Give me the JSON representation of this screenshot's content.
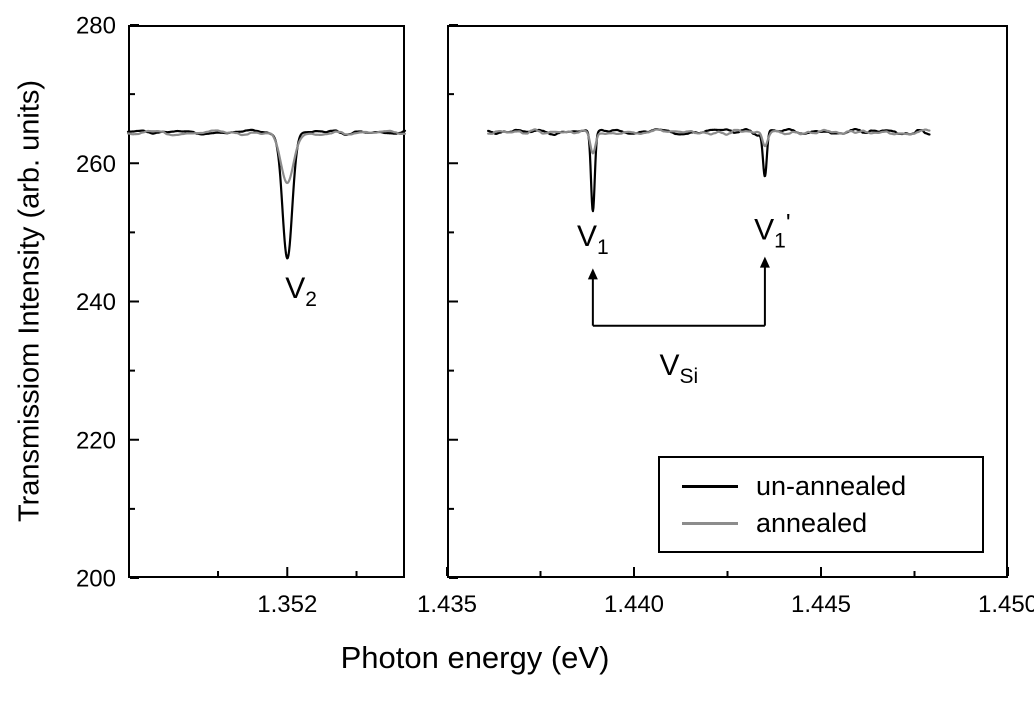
{
  "chart_data": {
    "type": "line",
    "xlabel": "Photon energy (eV)",
    "ylabel": "Transmissiom Intensity (arb. units)",
    "ylim": [
      200,
      280
    ],
    "yticks": [
      200,
      220,
      240,
      260,
      280
    ],
    "ytick_labels": [
      "200",
      "220",
      "240",
      "260",
      "280"
    ],
    "yticks_minor": [
      210,
      230,
      250,
      270
    ],
    "baseline": 264.5,
    "noise_amplitude": 0.55,
    "legend": {
      "position": "lower right",
      "entries": [
        {
          "label": "un-annealed",
          "color": "#000000"
        },
        {
          "label": "annealed",
          "color": "#8c8c8c"
        }
      ]
    },
    "panels": [
      {
        "name": "V2-panel",
        "xlim": [
          1.3497,
          1.3537
        ],
        "xticks": [
          1.352
        ],
        "xtick_labels": [
          "1.352"
        ],
        "xticks_minor": [
          1.351,
          1.353
        ],
        "data_range": [
          1.3497,
          1.3537
        ],
        "series": [
          {
            "name": "un-annealed",
            "color": "#000000",
            "seed": 11,
            "dips": [
              {
                "center": 1.352,
                "min": 246.0,
                "sigma": 7e-05
              }
            ]
          },
          {
            "name": "annealed",
            "color": "#8c8c8c",
            "seed": 22,
            "dips": [
              {
                "center": 1.352,
                "min": 257.5,
                "sigma": 9e-05
              }
            ]
          }
        ],
        "annotations": [
          {
            "kind": "label",
            "x": 1.3522,
            "y": 240.5,
            "main": "V",
            "sub": "2",
            "post": ""
          }
        ]
      },
      {
        "name": "V1-panel",
        "xlim": [
          1.435,
          1.45
        ],
        "xticks": [
          1.435,
          1.44,
          1.445,
          1.45
        ],
        "xtick_labels": [
          "1.435",
          "1.440",
          "1.445",
          "1.450"
        ],
        "xticks_minor": [
          1.4375,
          1.4425,
          1.4475
        ],
        "data_range": [
          1.4361,
          1.4479
        ],
        "series": [
          {
            "name": "un-annealed",
            "color": "#000000",
            "seed": 33,
            "dips": [
              {
                "center": 1.4389,
                "min": 253.0,
                "sigma": 5e-05
              },
              {
                "center": 1.4435,
                "min": 258.0,
                "sigma": 5e-05
              }
            ]
          },
          {
            "name": "annealed",
            "color": "#8c8c8c",
            "seed": 44,
            "dips": [
              {
                "center": 1.4389,
                "min": 261.3,
                "sigma": 7e-05
              },
              {
                "center": 1.4435,
                "min": 262.3,
                "sigma": 7e-05
              }
            ]
          }
        ],
        "annotations": [
          {
            "kind": "arrow",
            "x": 1.4389,
            "y1": 236.5,
            "y2": 244.8
          },
          {
            "kind": "arrow",
            "x": 1.4435,
            "y1": 236.5,
            "y2": 246.5
          },
          {
            "kind": "hline",
            "y": 236.5,
            "x1": 1.4389,
            "x2": 1.4435
          },
          {
            "kind": "label",
            "x": 1.4389,
            "y": 248.0,
            "main": "V",
            "sub": "1",
            "post": ""
          },
          {
            "kind": "label",
            "x": 1.4437,
            "y": 249.0,
            "main": "V",
            "sub": "1",
            "post": "'"
          },
          {
            "kind": "label",
            "x": 1.4412,
            "y": 229.4,
            "main": "V",
            "sub": "Si",
            "post": ""
          }
        ]
      }
    ]
  }
}
